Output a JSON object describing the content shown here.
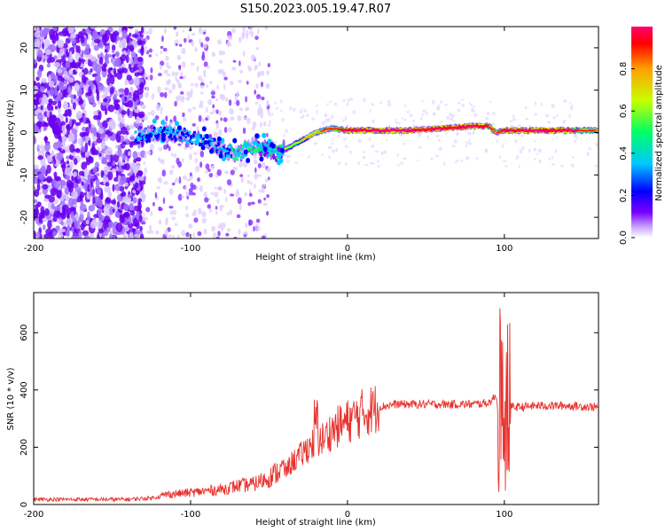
{
  "title": "S150.2023.005.19.47.R07",
  "chart_data": [
    {
      "type": "heatmap",
      "panel": "spectrogram",
      "xlabel": "Height of straight line (km)",
      "ylabel": "Frequency (Hz)",
      "xlim": [
        -200,
        160
      ],
      "ylim": [
        -25,
        25
      ],
      "xticks": [
        -200,
        -100,
        0,
        100
      ],
      "yticks": [
        -20,
        -10,
        0,
        10,
        20
      ],
      "colorbar": {
        "label": "Normalized spectral amplitude",
        "range": [
          0,
          1
        ],
        "ticks": [
          "0.0",
          "0.2",
          "0.4",
          "0.6",
          "0.8"
        ],
        "colors": [
          "#ffffff",
          "#c9a6ff",
          "#7a00ff",
          "#0000ff",
          "#00c8ff",
          "#00ff66",
          "#c8ff00",
          "#ffa000",
          "#ff0000",
          "#ff0070"
        ]
      },
      "ridge": {
        "description_free": true,
        "x": [
          -135,
          -120,
          -110,
          -100,
          -90,
          -80,
          -70,
          -60,
          -50,
          -45,
          -40,
          -30,
          -20,
          -10,
          0,
          20,
          40,
          60,
          80,
          90,
          95,
          100,
          120,
          140,
          160
        ],
        "y": [
          -1,
          0,
          -0.5,
          -1,
          -2,
          -4,
          -5,
          -3,
          -4,
          -5,
          -4,
          -2,
          0,
          1,
          0.5,
          0.5,
          0.5,
          1,
          1.5,
          1.5,
          0,
          0.5,
          0.5,
          0.5,
          0.5
        ],
        "amplitude": [
          0.3,
          0.35,
          0.35,
          0.3,
          0.3,
          0.35,
          0.4,
          0.4,
          0.45,
          0.45,
          0.5,
          0.6,
          0.7,
          0.75,
          0.9,
          0.95,
          0.95,
          0.9,
          0.95,
          0.85,
          0.7,
          0.9,
          0.95,
          0.9,
          0.7
        ]
      }
    },
    {
      "type": "line",
      "panel": "snr",
      "xlabel": "Height of straight line (km)",
      "ylabel": "SNR (10 * v/v)",
      "xlim": [
        -200,
        160
      ],
      "ylim": [
        0,
        740
      ],
      "xticks": [
        -200,
        -100,
        0,
        100
      ],
      "yticks": [
        0,
        200,
        400,
        600
      ],
      "color": "#e8322e",
      "x": [
        -200,
        -180,
        -160,
        -140,
        -125,
        -115,
        -100,
        -90,
        -80,
        -70,
        -60,
        -50,
        -40,
        -35,
        -30,
        -25,
        -20,
        -15,
        -10,
        0,
        10,
        20,
        30,
        40,
        60,
        80,
        90,
        95,
        98,
        100,
        102,
        105,
        110,
        120,
        140,
        160
      ],
      "y": [
        15,
        15,
        15,
        15,
        20,
        30,
        35,
        40,
        45,
        55,
        60,
        80,
        110,
        150,
        170,
        200,
        220,
        230,
        260,
        290,
        320,
        340,
        350,
        350,
        350,
        350,
        355,
        380,
        200,
        60,
        360,
        340,
        340,
        345,
        345,
        340
      ]
    }
  ]
}
